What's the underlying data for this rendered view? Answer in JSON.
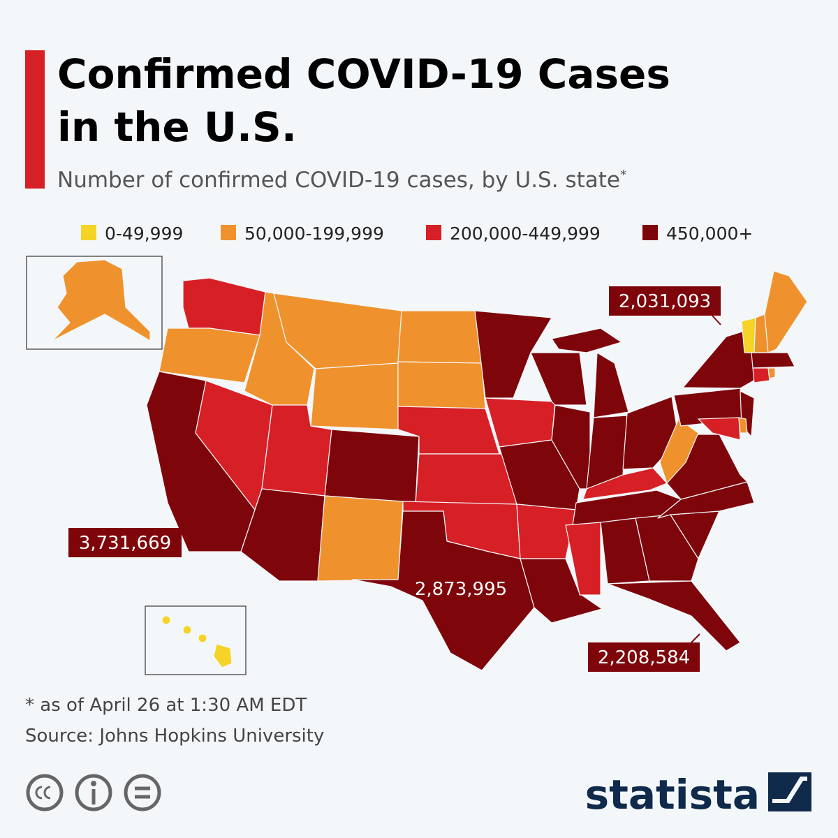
{
  "header": {
    "title_line1": "Confirmed COVID-19 Cases",
    "title_line2": "in the U.S.",
    "subtitle": "Number of confirmed COVID-19 cases, by U.S. state",
    "subtitle_mark": "*"
  },
  "legend": {
    "items": [
      {
        "label": "0-49,999",
        "color": "#f5d327"
      },
      {
        "label": "50,000-199,999",
        "color": "#ef922d"
      },
      {
        "label": "200,000-449,999",
        "color": "#d71f26"
      },
      {
        "label": "450,000+",
        "color": "#7e060b"
      }
    ]
  },
  "callouts": [
    "2,031,093",
    "3,731,669",
    "2,873,995",
    "2,208,584"
  ],
  "footer": {
    "note": "* as of April 26 at 1:30 AM EDT",
    "source": "Source: Johns Hopkins University",
    "brand": "statista"
  }
}
